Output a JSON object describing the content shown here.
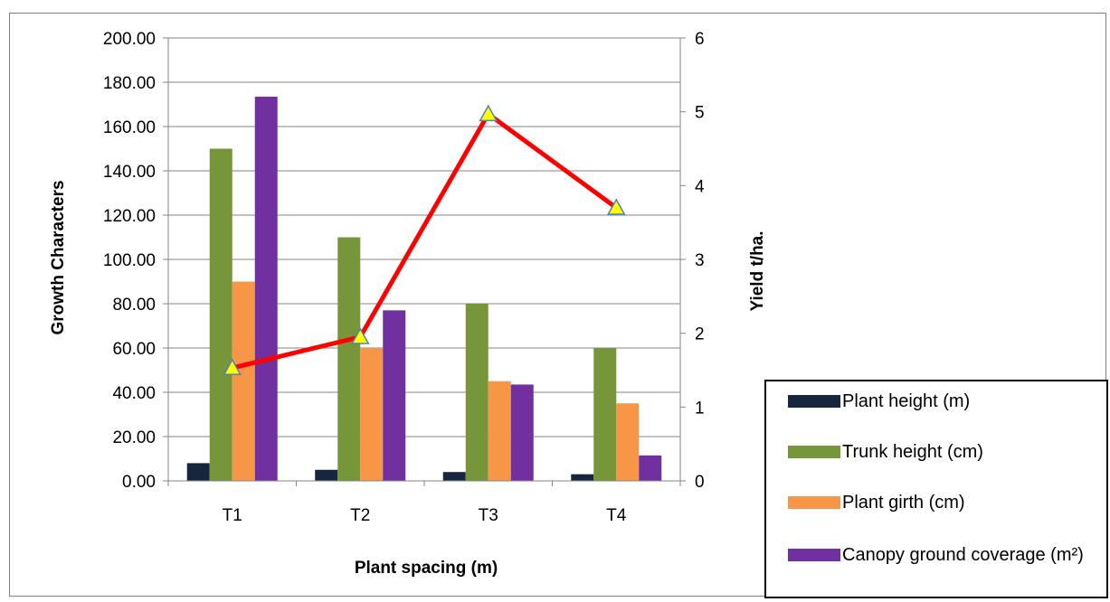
{
  "chart_data": {
    "type": "bar",
    "title": "",
    "xlabel": "Plant spacing  (m)",
    "ylabel": "Growth Characters",
    "y2label": "Yield t/ha.",
    "categories": [
      "T1",
      "T2",
      "T3",
      "T4"
    ],
    "ylim": [
      0,
      200
    ],
    "y_ticks": [
      "0.00",
      "20.00",
      "40.00",
      "60.00",
      "80.00",
      "100.00",
      "120.00",
      "140.00",
      "160.00",
      "180.00",
      "200.00"
    ],
    "y2lim": [
      0,
      6
    ],
    "y2_ticks": [
      "0",
      "1",
      "2",
      "3",
      "4",
      "5",
      "6"
    ],
    "grid": true,
    "legend_position": "bottom-right",
    "series": [
      {
        "name": "Plant height (m)",
        "color": "#17263d",
        "values": [
          8,
          5,
          4,
          3
        ]
      },
      {
        "name": "Trunk height (cm)",
        "color": "#77963a",
        "values": [
          150,
          110,
          80,
          60
        ]
      },
      {
        "name": "Plant girth (cm)",
        "color": "#f79646",
        "values": [
          90,
          60,
          45,
          35
        ]
      },
      {
        "name": "Canopy ground coverage (m²)",
        "color": "#7030a0",
        "values": [
          173.5,
          77,
          43.5,
          11.5
        ]
      }
    ],
    "line_series": {
      "axis": "secondary",
      "color": "#ff0000",
      "marker": "triangle",
      "marker_color": "#ffff00",
      "values": [
        1.53,
        1.95,
        4.97,
        3.7
      ]
    }
  }
}
